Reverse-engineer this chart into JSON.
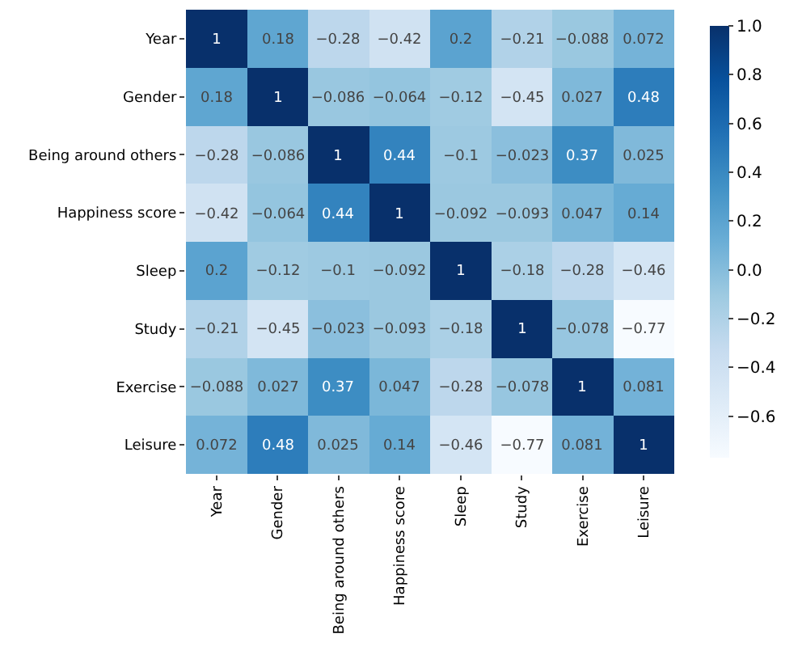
{
  "chart_data": {
    "type": "heatmap",
    "categories": [
      "Year",
      "Gender",
      "Being around others",
      "Happiness score",
      "Sleep",
      "Study",
      "Exercise",
      "Leisure"
    ],
    "y_categories": [
      "Year",
      "Gender",
      "Being around others",
      "Happiness score",
      "Sleep",
      "Study",
      "Exercise",
      "Leisure"
    ],
    "cells": [
      [
        1,
        0.18,
        -0.28,
        -0.42,
        0.2,
        -0.21,
        -0.088,
        0.072
      ],
      [
        0.18,
        1,
        -0.086,
        -0.064,
        -0.12,
        -0.45,
        0.027,
        0.48
      ],
      [
        -0.28,
        -0.086,
        1,
        0.44,
        -0.1,
        -0.023,
        0.37,
        0.025
      ],
      [
        -0.42,
        -0.064,
        0.44,
        1,
        -0.092,
        -0.093,
        0.047,
        0.14
      ],
      [
        0.2,
        -0.12,
        -0.1,
        -0.092,
        1,
        -0.18,
        -0.28,
        -0.46
      ],
      [
        -0.21,
        -0.45,
        -0.023,
        -0.093,
        -0.18,
        1,
        -0.078,
        -0.77
      ],
      [
        -0.088,
        0.027,
        0.37,
        0.047,
        -0.28,
        -0.078,
        1,
        0.081
      ],
      [
        0.072,
        0.48,
        0.025,
        0.14,
        -0.46,
        -0.77,
        0.081,
        1
      ]
    ],
    "clim": [
      -0.77,
      1
    ],
    "cticks": [
      {
        "value": -0.6,
        "label": "−0.6"
      },
      {
        "value": -0.4,
        "label": "−0.4"
      },
      {
        "value": -0.2,
        "label": "−0.2"
      },
      {
        "value": 0,
        "label": "0.0"
      },
      {
        "value": 0.2,
        "label": "0.2"
      },
      {
        "value": 0.4,
        "label": "0.4"
      },
      {
        "value": 0.6,
        "label": "0.6"
      },
      {
        "value": 0.8,
        "label": "0.8"
      },
      {
        "value": 1,
        "label": "1.0"
      }
    ],
    "data_labels": true
  }
}
